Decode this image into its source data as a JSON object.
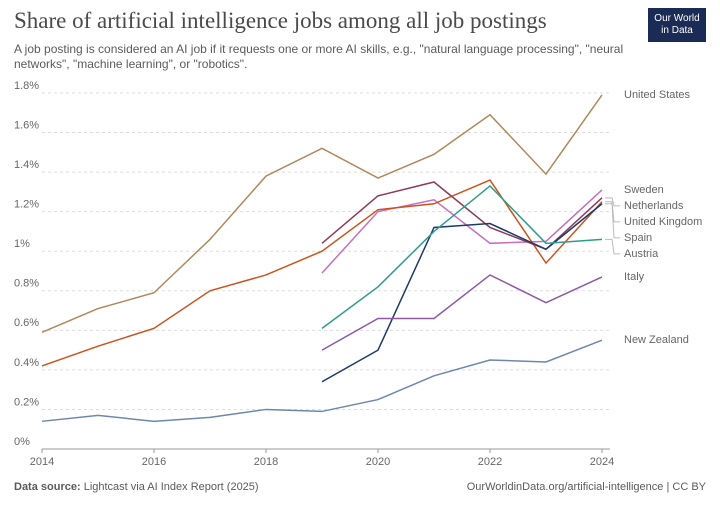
{
  "chart_data": {
    "type": "line",
    "title": "Share of artificial intelligence jobs among all job postings",
    "subtitle": "A job posting is considered an AI job if it requests one or more AI skills, e.g., \"natural language processing\", \"neural networks\", \"machine learning\", or \"robotics\".",
    "logo": [
      "Our World",
      "in Data"
    ],
    "source_label": "Data source:",
    "source": "Lightcast via AI Index Report (2025)",
    "url": "OurWorldinData.org/artificial-intelligence | CC BY",
    "x": [
      2014,
      2015,
      2016,
      2017,
      2018,
      2019,
      2020,
      2021,
      2022,
      2023,
      2024
    ],
    "xlim": [
      2014,
      2024
    ],
    "xticks": [
      2014,
      2016,
      2018,
      2020,
      2022,
      2024
    ],
    "ylim": [
      0,
      1.8
    ],
    "yticks": [
      {
        "value": 0,
        "label": "0%"
      },
      {
        "value": 0.2,
        "label": "0.2%"
      },
      {
        "value": 0.4,
        "label": "0.4%"
      },
      {
        "value": 0.6,
        "label": "0.6%"
      },
      {
        "value": 0.8,
        "label": "0.8%"
      },
      {
        "value": 1,
        "label": "1%"
      },
      {
        "value": 1.2,
        "label": "1.2%"
      },
      {
        "value": 1.4,
        "label": "1.4%"
      },
      {
        "value": 1.6,
        "label": "1.6%"
      },
      {
        "value": 1.8,
        "label": "1.8%"
      }
    ],
    "grid": true,
    "series": [
      {
        "name": "United States",
        "color": "#b0885a",
        "values": [
          0.59,
          0.71,
          0.79,
          1.06,
          1.38,
          1.52,
          1.37,
          1.49,
          1.69,
          1.39,
          1.79
        ]
      },
      {
        "name": "Sweden",
        "color": "#c46fc0",
        "values": [
          null,
          null,
          null,
          null,
          null,
          0.89,
          1.2,
          1.26,
          1.04,
          1.05,
          1.31
        ]
      },
      {
        "name": "United Kingdom",
        "color": "#c9541f",
        "values": [
          0.42,
          0.52,
          0.61,
          0.8,
          0.88,
          1.0,
          1.21,
          1.24,
          1.36,
          0.94,
          1.25
        ]
      },
      {
        "name": "Netherlands",
        "color": "#8c3b5a",
        "values": [
          null,
          null,
          null,
          null,
          null,
          1.04,
          1.28,
          1.35,
          1.12,
          1.01,
          1.27
        ]
      },
      {
        "name": "Spain",
        "color": "#1d3a6b",
        "values": [
          null,
          null,
          null,
          null,
          null,
          0.34,
          0.5,
          1.12,
          1.14,
          1.01,
          1.24
        ]
      },
      {
        "name": "Austria",
        "color": "#2e9c8c",
        "values": [
          null,
          null,
          null,
          null,
          null,
          0.61,
          0.82,
          1.1,
          1.33,
          1.04,
          1.06
        ]
      },
      {
        "name": "Italy",
        "color": "#8e57a8",
        "values": [
          null,
          null,
          null,
          null,
          null,
          0.5,
          0.66,
          0.66,
          0.88,
          0.74,
          0.87
        ]
      },
      {
        "name": "New Zealand",
        "color": "#6d87b0",
        "values": [
          0.14,
          0.17,
          0.14,
          0.16,
          0.2,
          0.19,
          0.25,
          0.37,
          0.45,
          0.44,
          0.55
        ]
      }
    ]
  }
}
